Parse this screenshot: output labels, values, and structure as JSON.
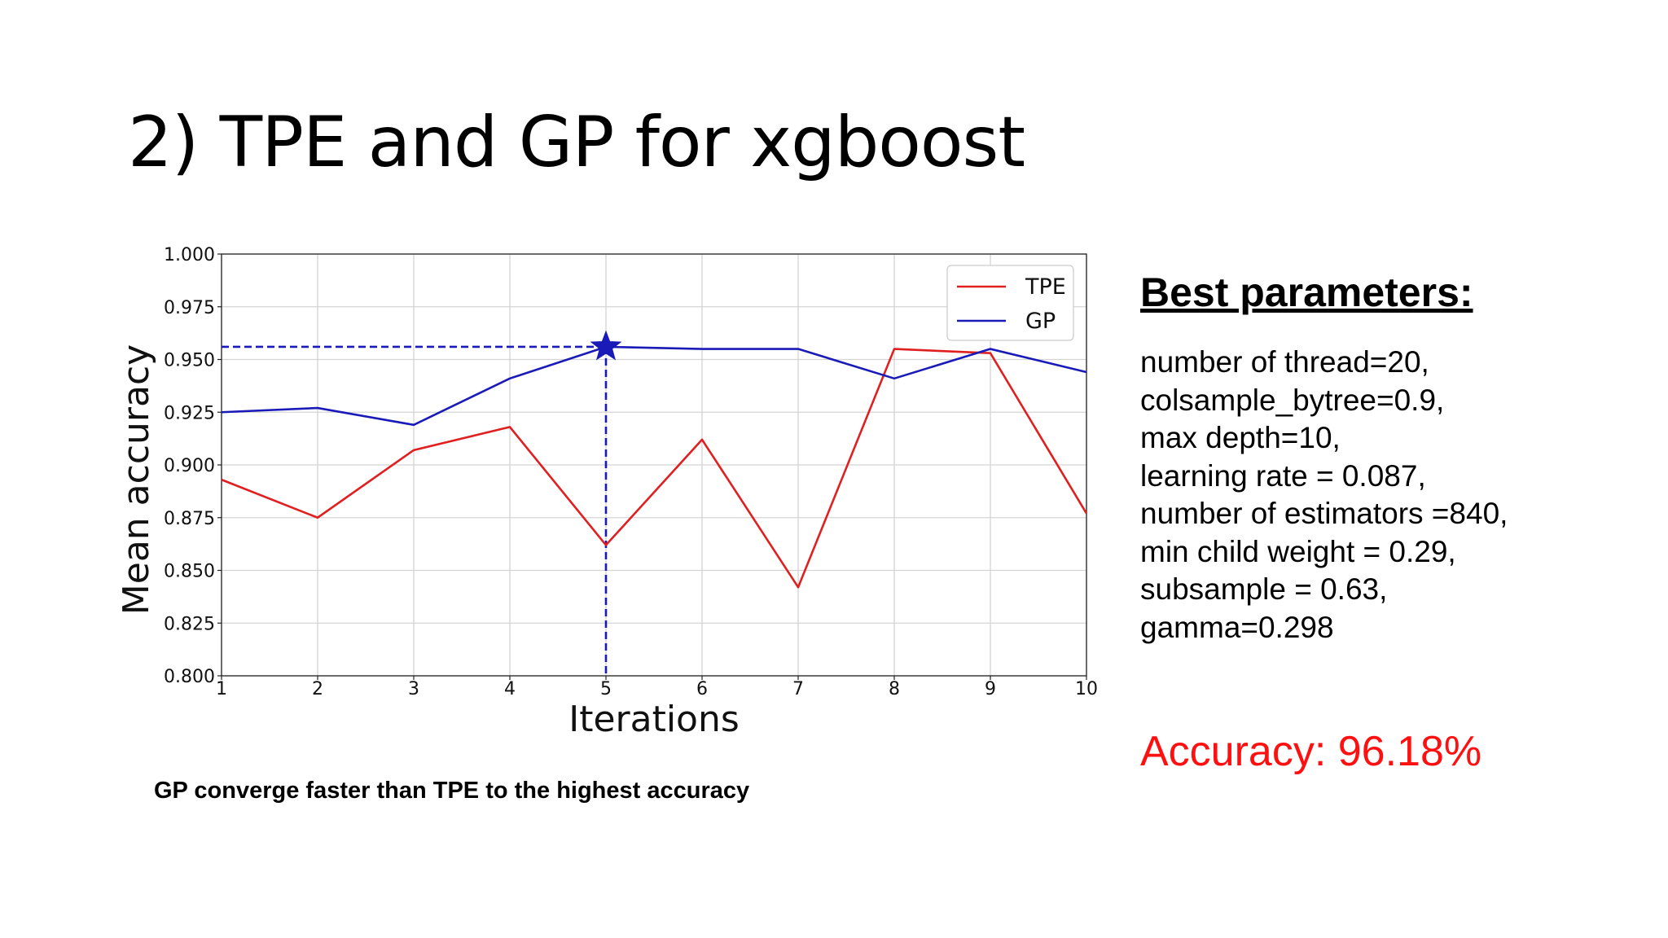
{
  "title": "2) TPE and GP for xgboost",
  "caption": "GP converge faster than TPE to the highest accuracy",
  "params": {
    "heading": "Best parameters:",
    "items": [
      "number of thread=20,",
      "colsample_bytree=0.9,",
      "max depth=10,",
      "learning rate = 0.087,",
      "number of estimators =840,",
      "min child weight = 0.29,",
      "subsample = 0.63,",
      "gamma=0.298"
    ]
  },
  "accuracy": "Accuracy: 96.18%",
  "colors": {
    "tpe": "#e02020",
    "gp": "#1a1ab8",
    "accuracy": "#ff1010"
  },
  "chart_data": {
    "type": "line",
    "title": "",
    "xlabel": "Iterations",
    "ylabel": "Mean accuracy",
    "x": [
      1,
      2,
      3,
      4,
      5,
      6,
      7,
      8,
      9,
      10
    ],
    "xlim": [
      1,
      10
    ],
    "ylim": [
      0.8,
      1.0
    ],
    "xticks": [
      "1",
      "2",
      "3",
      "4",
      "5",
      "6",
      "7",
      "8",
      "9",
      "10"
    ],
    "yticks": [
      "0.800",
      "0.825",
      "0.850",
      "0.875",
      "0.900",
      "0.925",
      "0.950",
      "0.975",
      "1.000"
    ],
    "grid": true,
    "legend": "top-right",
    "series": [
      {
        "name": "TPE",
        "color": "#e02020",
        "values": [
          0.893,
          0.875,
          0.907,
          0.918,
          0.862,
          0.912,
          0.842,
          0.955,
          0.953,
          0.877
        ]
      },
      {
        "name": "GP",
        "color": "#1a1ab8",
        "values": [
          0.925,
          0.927,
          0.919,
          0.941,
          0.956,
          0.955,
          0.955,
          0.941,
          0.955,
          0.944
        ]
      }
    ],
    "best_point": {
      "x": 5,
      "y": 0.956,
      "marker": "star",
      "color": "#1a1ab8"
    }
  }
}
